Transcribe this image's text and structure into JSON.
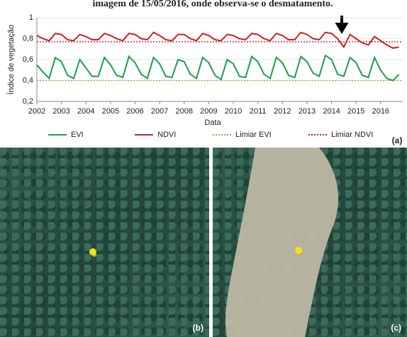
{
  "chart_data": {
    "type": "line",
    "title": "imagem de 15/05/2016, onde observa-se o desmatamento.",
    "y_label": "Índice de vegetação",
    "x_label": "Data",
    "panel_label": "(a)",
    "xlim": [
      2002,
      2016.9
    ],
    "xticks": [
      2002,
      2003,
      2004,
      2005,
      2006,
      2007,
      2008,
      2009,
      2010,
      2011,
      2012,
      2013,
      2014,
      2015,
      2016
    ],
    "ylim": [
      0.2,
      1
    ],
    "yticks": [
      {
        "value": 0.2,
        "label": "0,2"
      },
      {
        "value": 0.4,
        "label": "0,4"
      },
      {
        "value": 0.6,
        "label": "0,6"
      },
      {
        "value": 0.8,
        "label": "0,8"
      },
      1
    ],
    "x": [
      2002,
      2002.25,
      2002.5,
      2002.75,
      2003,
      2003.25,
      2003.5,
      2003.75,
      2004,
      2004.25,
      2004.5,
      2004.75,
      2005,
      2005.25,
      2005.5,
      2005.75,
      2006,
      2006.25,
      2006.5,
      2006.75,
      2007,
      2007.25,
      2007.5,
      2007.75,
      2008,
      2008.25,
      2008.5,
      2008.75,
      2009,
      2009.25,
      2009.5,
      2009.75,
      2010,
      2010.25,
      2010.5,
      2010.75,
      2011,
      2011.25,
      2011.5,
      2011.75,
      2012,
      2012.25,
      2012.5,
      2012.75,
      2013,
      2013.25,
      2013.5,
      2013.75,
      2014,
      2014.25,
      2014.5,
      2014.75,
      2015,
      2015.25,
      2015.5,
      2015.75,
      2016,
      2016.25,
      2016.5,
      2016.75
    ],
    "series": [
      {
        "name": "EVI",
        "color": "#1e9e4a",
        "values": [
          0.55,
          0.48,
          0.42,
          0.62,
          0.58,
          0.45,
          0.42,
          0.6,
          0.52,
          0.44,
          0.44,
          0.62,
          0.55,
          0.45,
          0.43,
          0.63,
          0.57,
          0.46,
          0.42,
          0.62,
          0.56,
          0.44,
          0.43,
          0.6,
          0.58,
          0.46,
          0.42,
          0.62,
          0.57,
          0.45,
          0.41,
          0.6,
          0.56,
          0.44,
          0.43,
          0.63,
          0.58,
          0.46,
          0.42,
          0.62,
          0.57,
          0.45,
          0.43,
          0.63,
          0.58,
          0.47,
          0.44,
          0.64,
          0.6,
          0.46,
          0.44,
          0.62,
          0.57,
          0.45,
          0.43,
          0.62,
          0.5,
          0.42,
          0.4,
          0.46
        ]
      },
      {
        "name": "NDVI",
        "color": "#cc2222",
        "values": [
          0.83,
          0.8,
          0.78,
          0.85,
          0.84,
          0.79,
          0.78,
          0.84,
          0.82,
          0.79,
          0.79,
          0.85,
          0.83,
          0.8,
          0.78,
          0.85,
          0.84,
          0.8,
          0.79,
          0.86,
          0.83,
          0.79,
          0.78,
          0.84,
          0.84,
          0.8,
          0.78,
          0.85,
          0.83,
          0.79,
          0.78,
          0.84,
          0.83,
          0.8,
          0.79,
          0.85,
          0.84,
          0.8,
          0.78,
          0.85,
          0.83,
          0.79,
          0.79,
          0.86,
          0.84,
          0.8,
          0.79,
          0.86,
          0.85,
          0.8,
          0.72,
          0.84,
          0.8,
          0.76,
          0.74,
          0.82,
          0.78,
          0.74,
          0.71,
          0.72
        ]
      }
    ],
    "thresholds": [
      {
        "name": "Limiar EVI",
        "color": "#9aa84a",
        "value": 0.4
      },
      {
        "name": "Limiar NDVI",
        "color": "#cc2222",
        "value": 0.77
      }
    ],
    "grid": true
  },
  "images": [
    {
      "label": "(b)"
    },
    {
      "label": "(c)"
    }
  ]
}
